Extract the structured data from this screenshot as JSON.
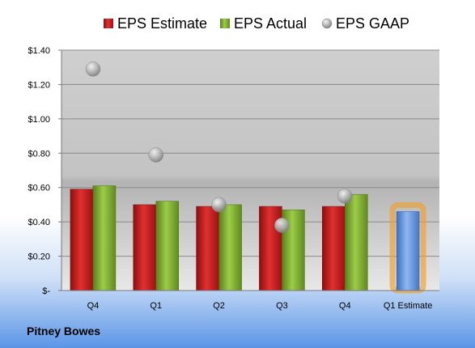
{
  "company": "Pitney Bowes",
  "chart_data": {
    "type": "bar",
    "categories": [
      "Q4",
      "Q1",
      "Q2",
      "Q3",
      "Q4",
      "Q1 Estimate"
    ],
    "series": [
      {
        "name": "EPS Estimate",
        "type": "bar",
        "color": "#cc1f1f",
        "values": [
          0.59,
          0.5,
          0.49,
          0.49,
          0.49,
          null
        ]
      },
      {
        "name": "EPS Actual",
        "type": "bar",
        "color": "#7fae2e",
        "values": [
          0.61,
          0.52,
          0.5,
          0.47,
          0.56,
          null
        ]
      },
      {
        "name": "EPS GAAP",
        "type": "scatter",
        "color": "#a8a8a8",
        "values": [
          1.29,
          0.79,
          0.5,
          0.38,
          0.55,
          null
        ]
      },
      {
        "name": "",
        "type": "bar",
        "color": "#5d8fdc",
        "highlight": "#f0a030",
        "values": [
          null,
          null,
          null,
          null,
          null,
          0.46
        ]
      }
    ],
    "y_ticks": [
      "$-",
      "$0.20",
      "$0.40",
      "$0.60",
      "$0.80",
      "$1.00",
      "$1.20",
      "$1.40"
    ],
    "ylim": [
      0,
      1.4
    ],
    "grid": true,
    "legend_position": "top"
  }
}
